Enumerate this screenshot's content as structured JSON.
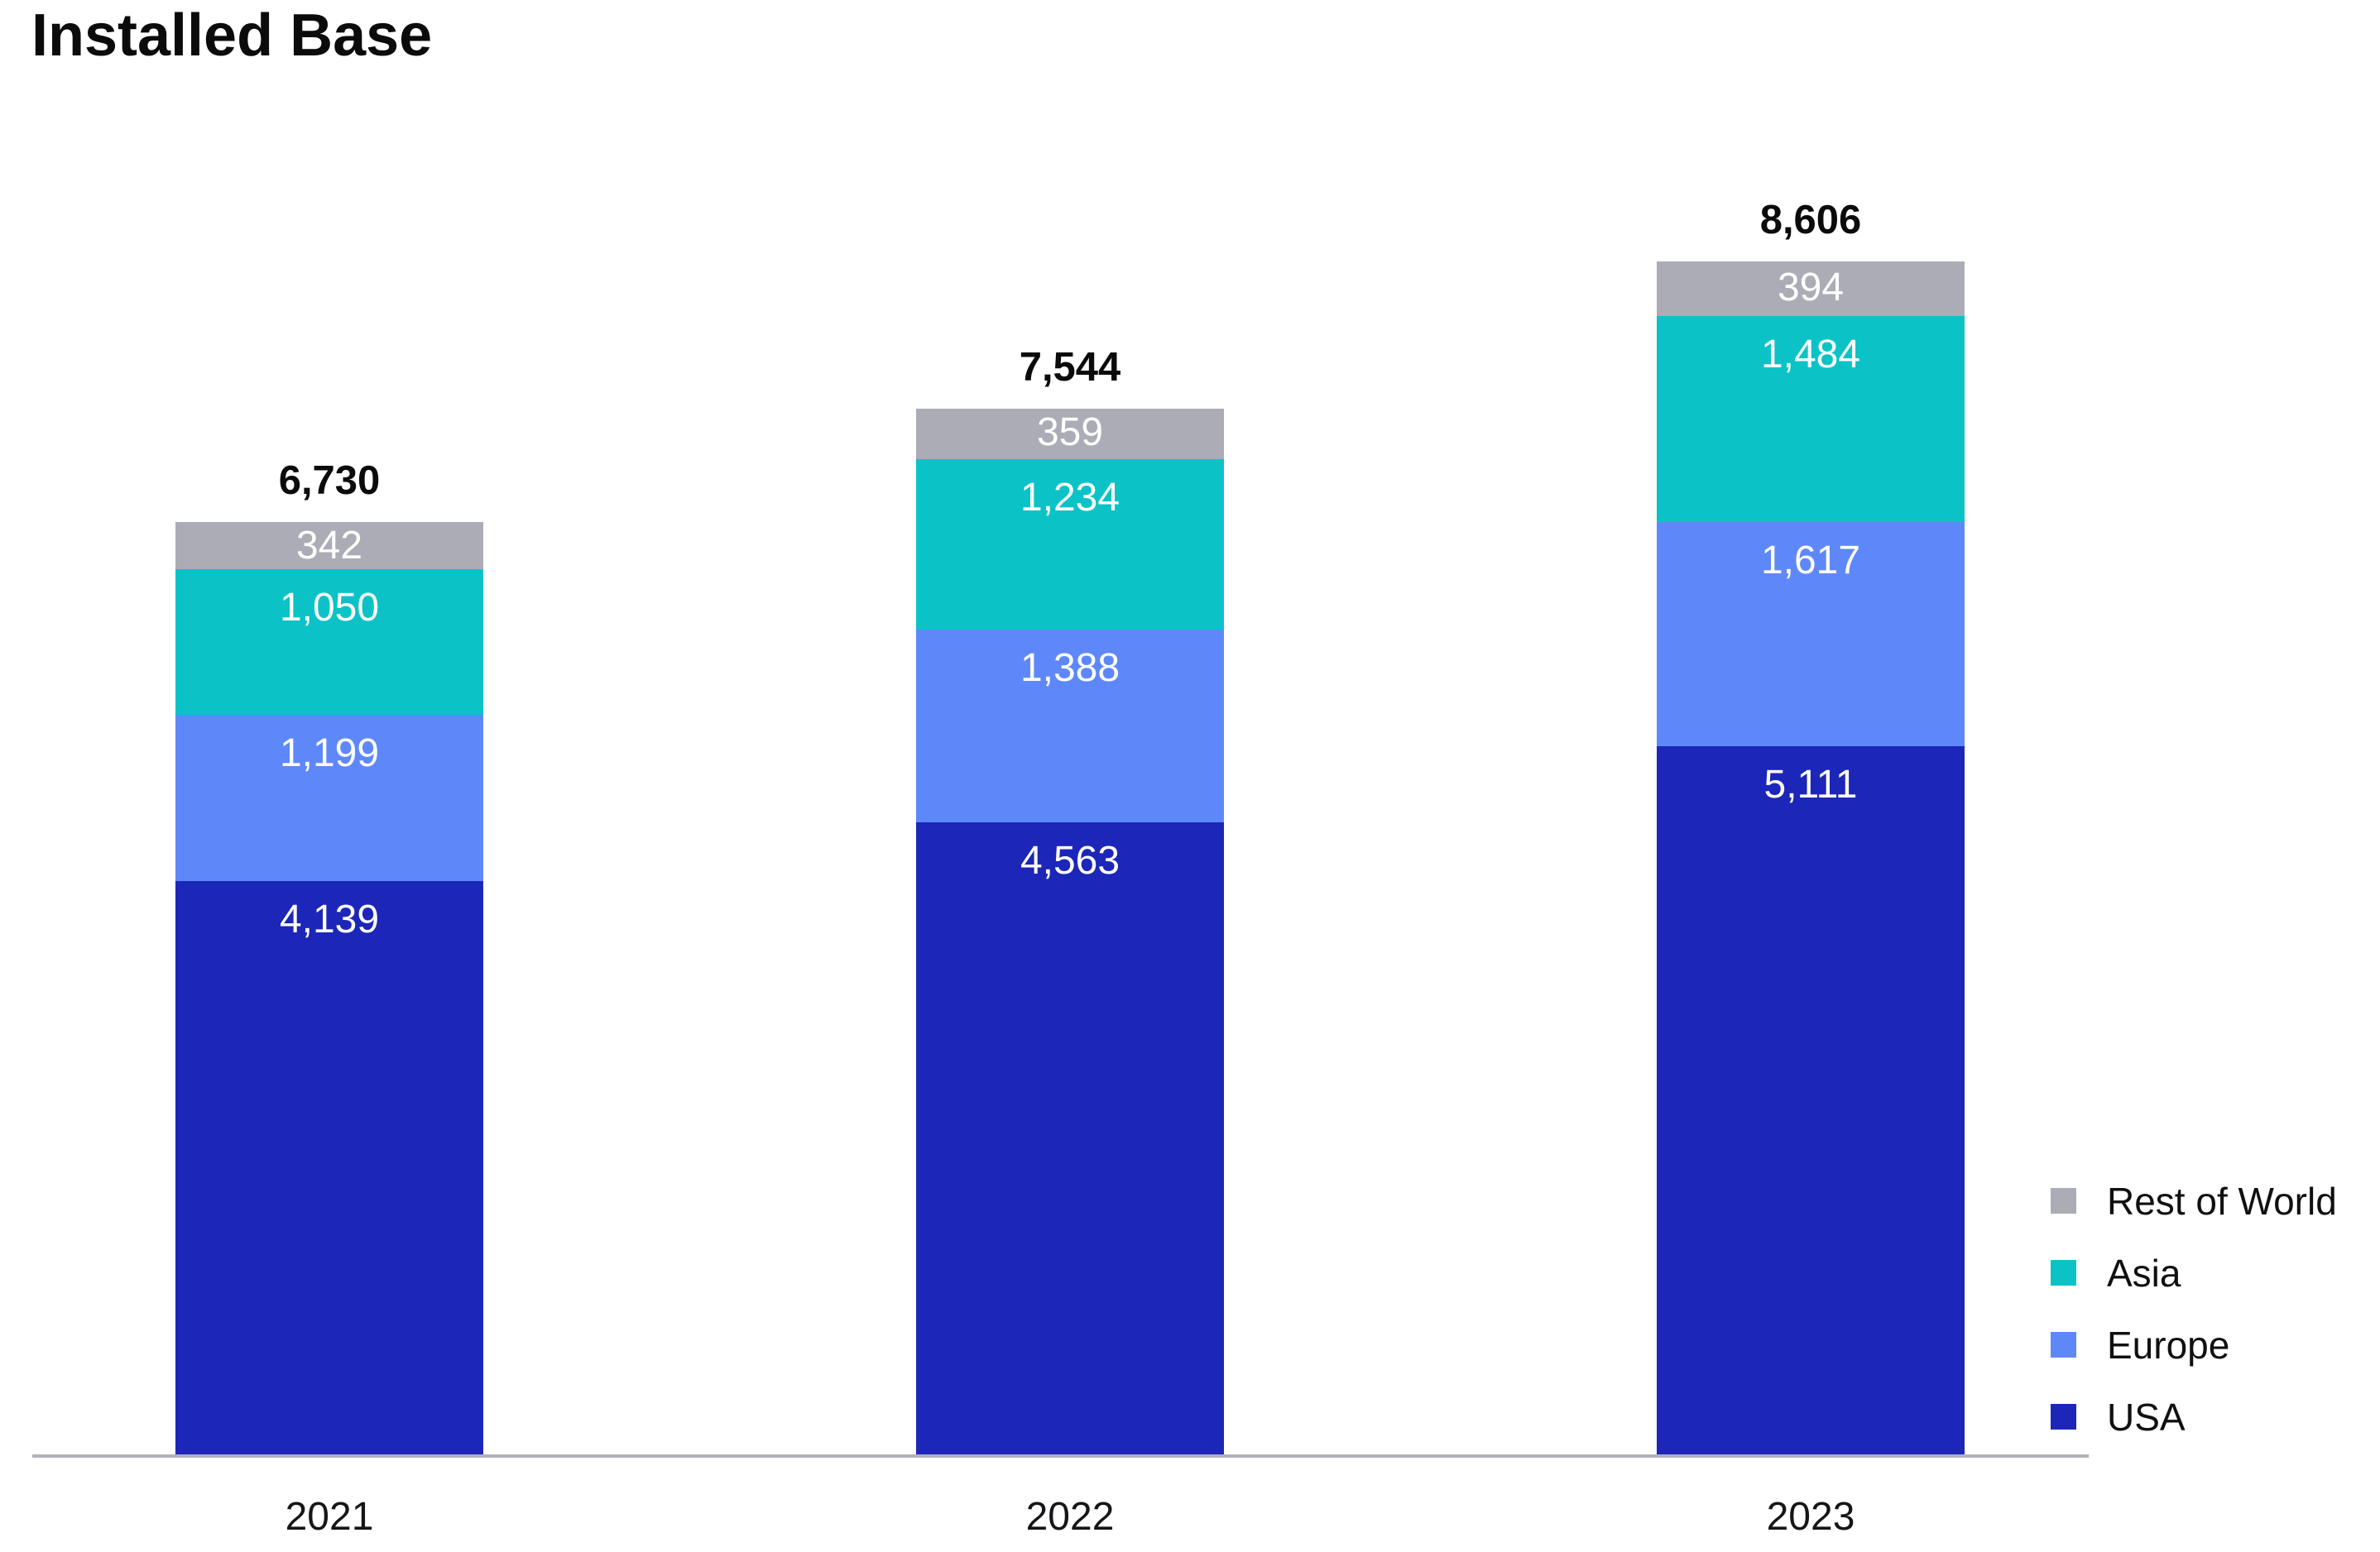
{
  "title": "Installed Base",
  "chart_data": {
    "type": "bar",
    "stacked": true,
    "grid": false,
    "value_axis": "hidden",
    "legend_position": "bottom-right",
    "categories": [
      "2021",
      "2022",
      "2023"
    ],
    "series": [
      {
        "name": "USA",
        "color": "#1C26B8",
        "values": [
          4139,
          4563,
          5111
        ],
        "labels": [
          "4,139",
          "4,563",
          "5,111"
        ]
      },
      {
        "name": "Europe",
        "color": "#5E88FA",
        "values": [
          1199,
          1388,
          1617
        ],
        "labels": [
          "1,199",
          "1,388",
          "1,617"
        ]
      },
      {
        "name": "Asia",
        "color": "#0BC3C7",
        "values": [
          1050,
          1234,
          1484
        ],
        "labels": [
          "1,050",
          "1,234",
          "1,484"
        ]
      },
      {
        "name": "Rest of World",
        "color": "#ABACB5",
        "values": [
          342,
          359,
          394
        ],
        "labels": [
          "342",
          "359",
          "394"
        ]
      }
    ],
    "totals_values": [
      6730,
      7544,
      8606
    ],
    "totals_labels": [
      "6,730",
      "7,544",
      "8,606"
    ],
    "legend_order": [
      "Rest of World",
      "Asia",
      "Europe",
      "USA"
    ],
    "axis_line_color": "#B2B2BA",
    "label_text_color_inside": "#FFFFFF",
    "label_text_color_outside": "#0B0B0B"
  }
}
